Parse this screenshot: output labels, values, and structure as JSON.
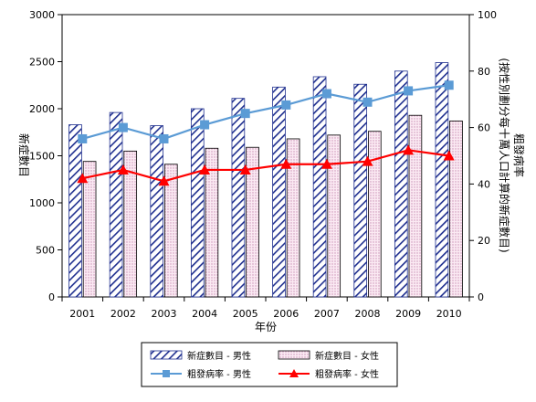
{
  "chart_data": {
    "type": "bar",
    "categories": [
      "2001",
      "2002",
      "2003",
      "2004",
      "2005",
      "2006",
      "2007",
      "2008",
      "2009",
      "2010"
    ],
    "xlabel": "年份",
    "ylabel_left": "新症數目",
    "ylabel_right": "粗發病率\n(按性別劃分每十萬人口計算的新症數目)",
    "ylim_left": [
      0,
      3000
    ],
    "ylim_right": [
      0,
      100
    ],
    "yticks_left": [
      "0",
      "500",
      "1000",
      "1500",
      "2000",
      "2500",
      "3000"
    ],
    "yticks_right": [
      "0",
      "20",
      "40",
      "60",
      "80",
      "100"
    ],
    "grid": false,
    "legend_position": "bottom",
    "series": [
      {
        "name": "新症數目 - 男性",
        "kind": "bar",
        "axis": "left",
        "color": "#1f2f8f",
        "values": [
          1830,
          1960,
          1820,
          2000,
          2110,
          2230,
          2340,
          2260,
          2400,
          2490
        ]
      },
      {
        "name": "新症數目 - 女性",
        "kind": "bar",
        "axis": "left",
        "color": "#f2d8e8",
        "values": [
          1440,
          1550,
          1410,
          1580,
          1590,
          1680,
          1720,
          1760,
          1930,
          1870
        ]
      },
      {
        "name": "粗發病率 - 男性",
        "kind": "line",
        "axis": "right",
        "color": "#5b9bd5",
        "marker": "square",
        "values": [
          56,
          60,
          56,
          61,
          65,
          68,
          72,
          69,
          73,
          75
        ]
      },
      {
        "name": "粗發病率 - 女性",
        "kind": "line",
        "axis": "right",
        "color": "#ff0000",
        "marker": "triangle",
        "values": [
          42,
          45,
          41,
          45,
          45,
          47,
          47,
          48,
          52,
          50
        ]
      }
    ]
  }
}
